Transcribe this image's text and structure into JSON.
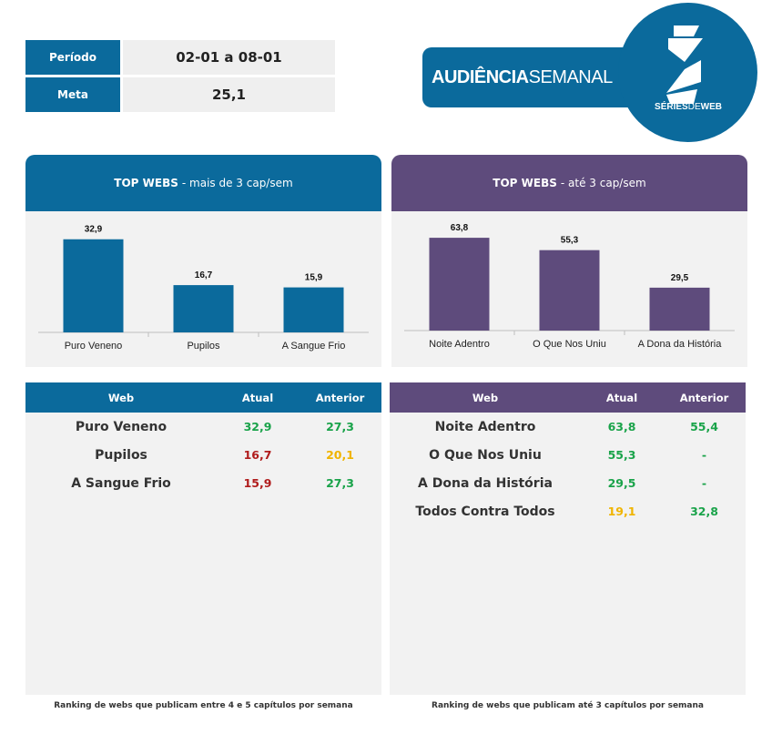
{
  "info": {
    "periodo_label": "Período",
    "periodo_value": "02-01 a 08-01",
    "meta_label": "Meta",
    "meta_value": "25,1"
  },
  "banner": {
    "title_bold": "AUDIÊNCIA",
    "title_light": "SEMANAL"
  },
  "logo": {
    "text_bold": "SÉRIES",
    "text_light": "DE",
    "text_bold2": "WEB"
  },
  "colors": {
    "blue": "#0b6a9c",
    "purple": "#5e4b7c",
    "green": "#1aa34a",
    "red": "#b01c1c",
    "yellow": "#f0b400"
  },
  "chart_data": [
    {
      "type": "bar",
      "title_bold": "TOP WEBS",
      "title_rest": "- mais de 3 cap/sem",
      "categories": [
        "Puro Veneno",
        "Pupilos",
        "A Sangue Frio"
      ],
      "values": [
        32.9,
        16.7,
        15.9
      ],
      "labels": [
        "32,9",
        "16,7",
        "15,9"
      ],
      "ylim": [
        0,
        37
      ]
    },
    {
      "type": "bar",
      "title_bold": "TOP WEBS",
      "title_rest": "- até 3 cap/sem",
      "categories": [
        "Noite Adentro",
        "O Que Nos Uniu",
        "A Dona da História"
      ],
      "values": [
        63.8,
        55.3,
        29.5
      ],
      "labels": [
        "63,8",
        "55,3",
        "29,5"
      ],
      "ylim": [
        0,
        72
      ]
    }
  ],
  "tables": [
    {
      "headers": [
        "Web",
        "Atual",
        "Anterior"
      ],
      "rows": [
        {
          "web": "Puro Veneno",
          "atual": "32,9",
          "atual_color": "green",
          "anterior": "27,3",
          "anterior_color": "green"
        },
        {
          "web": "Pupilos",
          "atual": "16,7",
          "atual_color": "red",
          "anterior": "20,1",
          "anterior_color": "yellow"
        },
        {
          "web": "A Sangue Frio",
          "atual": "15,9",
          "atual_color": "red",
          "anterior": "27,3",
          "anterior_color": "green"
        }
      ],
      "footer": "Ranking de webs que publicam entre 4 e 5 capítulos por semana"
    },
    {
      "headers": [
        "Web",
        "Atual",
        "Anterior"
      ],
      "rows": [
        {
          "web": "Noite Adentro",
          "atual": "63,8",
          "atual_color": "green",
          "anterior": "55,4",
          "anterior_color": "green"
        },
        {
          "web": "O Que Nos Uniu",
          "atual": "55,3",
          "atual_color": "green",
          "anterior": "-",
          "anterior_color": "green"
        },
        {
          "web": "A Dona da História",
          "atual": "29,5",
          "atual_color": "green",
          "anterior": "-",
          "anterior_color": "green"
        },
        {
          "web": "Todos Contra Todos",
          "atual": "19,1",
          "atual_color": "yellow",
          "anterior": "32,8",
          "anterior_color": "green"
        }
      ],
      "footer": "Ranking de webs que publicam até 3 capítulos por semana"
    }
  ]
}
